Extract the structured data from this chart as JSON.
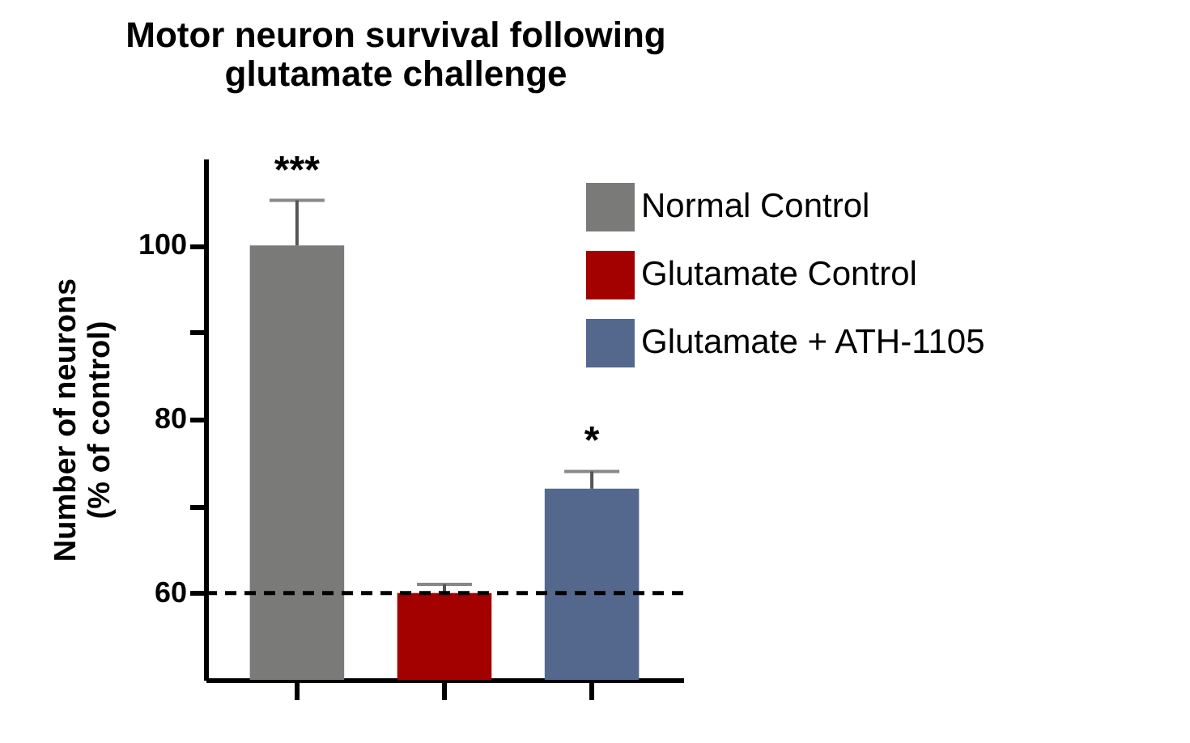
{
  "chart_data": {
    "type": "bar",
    "title": "Motor neuron survival following\nglutamate challenge",
    "ylabel": "Number of neurons\n(% of control)",
    "categories": [
      null,
      null,
      null
    ],
    "series": [
      {
        "name": "Normal  Control",
        "color": "#7a7b78",
        "values": [
          100,
          null,
          null
        ],
        "value_labels": [
          "***",
          null,
          null
        ],
        "errors": [
          [
            100,
            105.2
          ],
          null,
          null
        ]
      },
      {
        "name": "Glutamate Control",
        "color": "#a30000",
        "values": [
          null,
          60,
          null
        ],
        "errors": [
          null,
          [
            60,
            61
          ],
          null
        ]
      },
      {
        "name": "Glutamate + ATH-1105",
        "color": "#54688e",
        "values": [
          null,
          null,
          72
        ],
        "value_labels": [
          null,
          null,
          "*"
        ],
        "errors": [
          null,
          null,
          [
            72,
            74
          ]
        ]
      }
    ],
    "ylim": [
      50,
      110
    ],
    "yticks": [
      60,
      {
        "value": 70,
        "label": null
      },
      80,
      {
        "value": 90,
        "label": null
      },
      100
    ],
    "ref_lines": [
      {
        "axis": "y",
        "value": 60,
        "color": "#000000",
        "line_style": "dashed"
      }
    ],
    "grid": false,
    "legend": "top right",
    "tick_labels": "y"
  }
}
